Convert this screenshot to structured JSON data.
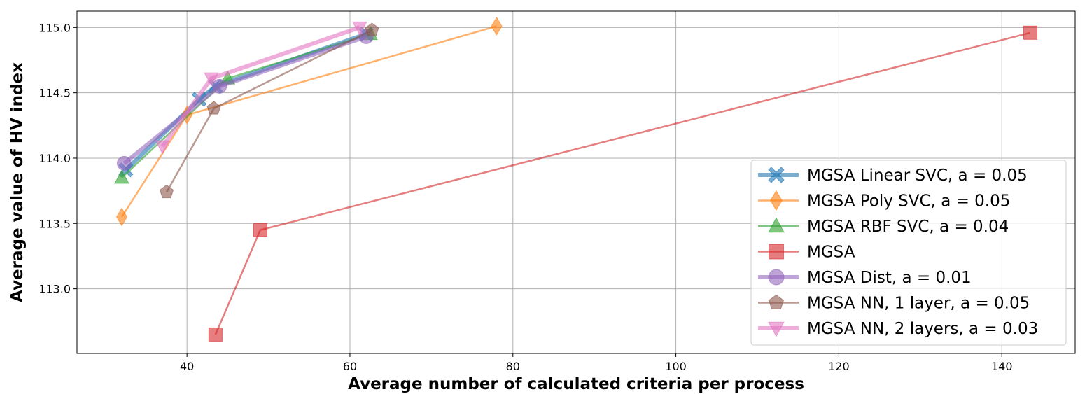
{
  "chart_data": {
    "type": "line",
    "title": "",
    "xlabel": "Average number of calculated criteria per process",
    "ylabel": "Average value of HV index",
    "xlim": [
      26.5,
      149
    ],
    "ylim": [
      112.505,
      115.125
    ],
    "xticks": [
      40,
      60,
      80,
      100,
      120,
      140
    ],
    "yticks": [
      113.0,
      113.5,
      114.0,
      114.5,
      115.0
    ],
    "xtick_labels": [
      "40",
      "60",
      "80",
      "100",
      "120",
      "140"
    ],
    "ytick_labels": [
      "113.0",
      "113.5",
      "114.0",
      "114.5",
      "115.0"
    ],
    "grid": true,
    "legend_position": "bottom-right",
    "series": [
      {
        "name": "MGSA Linear SVC, a = 0.05",
        "color": "#1f77b4",
        "marker": "x",
        "line_width": 6,
        "x": [
          32.5,
          41.5,
          43.5,
          62.0
        ],
        "y": [
          113.91,
          114.45,
          114.55,
          114.95
        ]
      },
      {
        "name": "MGSA Poly SVC, a = 0.05",
        "color": "#ff7f0e",
        "marker": "diamond",
        "line_width": 2.5,
        "x": [
          32.0,
          40.0,
          78.0
        ],
        "y": [
          113.55,
          114.33,
          115.01
        ]
      },
      {
        "name": "MGSA RBF SVC, a = 0.04",
        "color": "#2ca02c",
        "marker": "triangle-up",
        "line_width": 2.5,
        "x": [
          32.0,
          45.0,
          62.5
        ],
        "y": [
          113.85,
          114.61,
          114.95
        ]
      },
      {
        "name": "MGSA",
        "color": "#d62728",
        "marker": "square",
        "line_width": 2.5,
        "x": [
          43.5,
          49.0,
          143.5
        ],
        "y": [
          112.65,
          113.45,
          114.96
        ]
      },
      {
        "name": "MGSA Dist, a = 0.01",
        "color": "#9467bd",
        "marker": "circle",
        "line_width": 6,
        "x": [
          32.3,
          44.0,
          62.0
        ],
        "y": [
          113.96,
          114.55,
          114.93
        ]
      },
      {
        "name": "MGSA NN, 1 layer, a = 0.05",
        "color": "#8c564b",
        "marker": "pentagon",
        "line_width": 2.5,
        "x": [
          37.5,
          43.3,
          62.7
        ],
        "y": [
          113.74,
          114.38,
          114.98
        ]
      },
      {
        "name": "MGSA NN, 2 layers, a = 0.03",
        "color": "#e377c2",
        "marker": "triangle-down",
        "line_width": 6,
        "x": [
          37.0,
          43.0,
          61.2
        ],
        "y": [
          114.09,
          114.61,
          115.0
        ]
      }
    ]
  }
}
